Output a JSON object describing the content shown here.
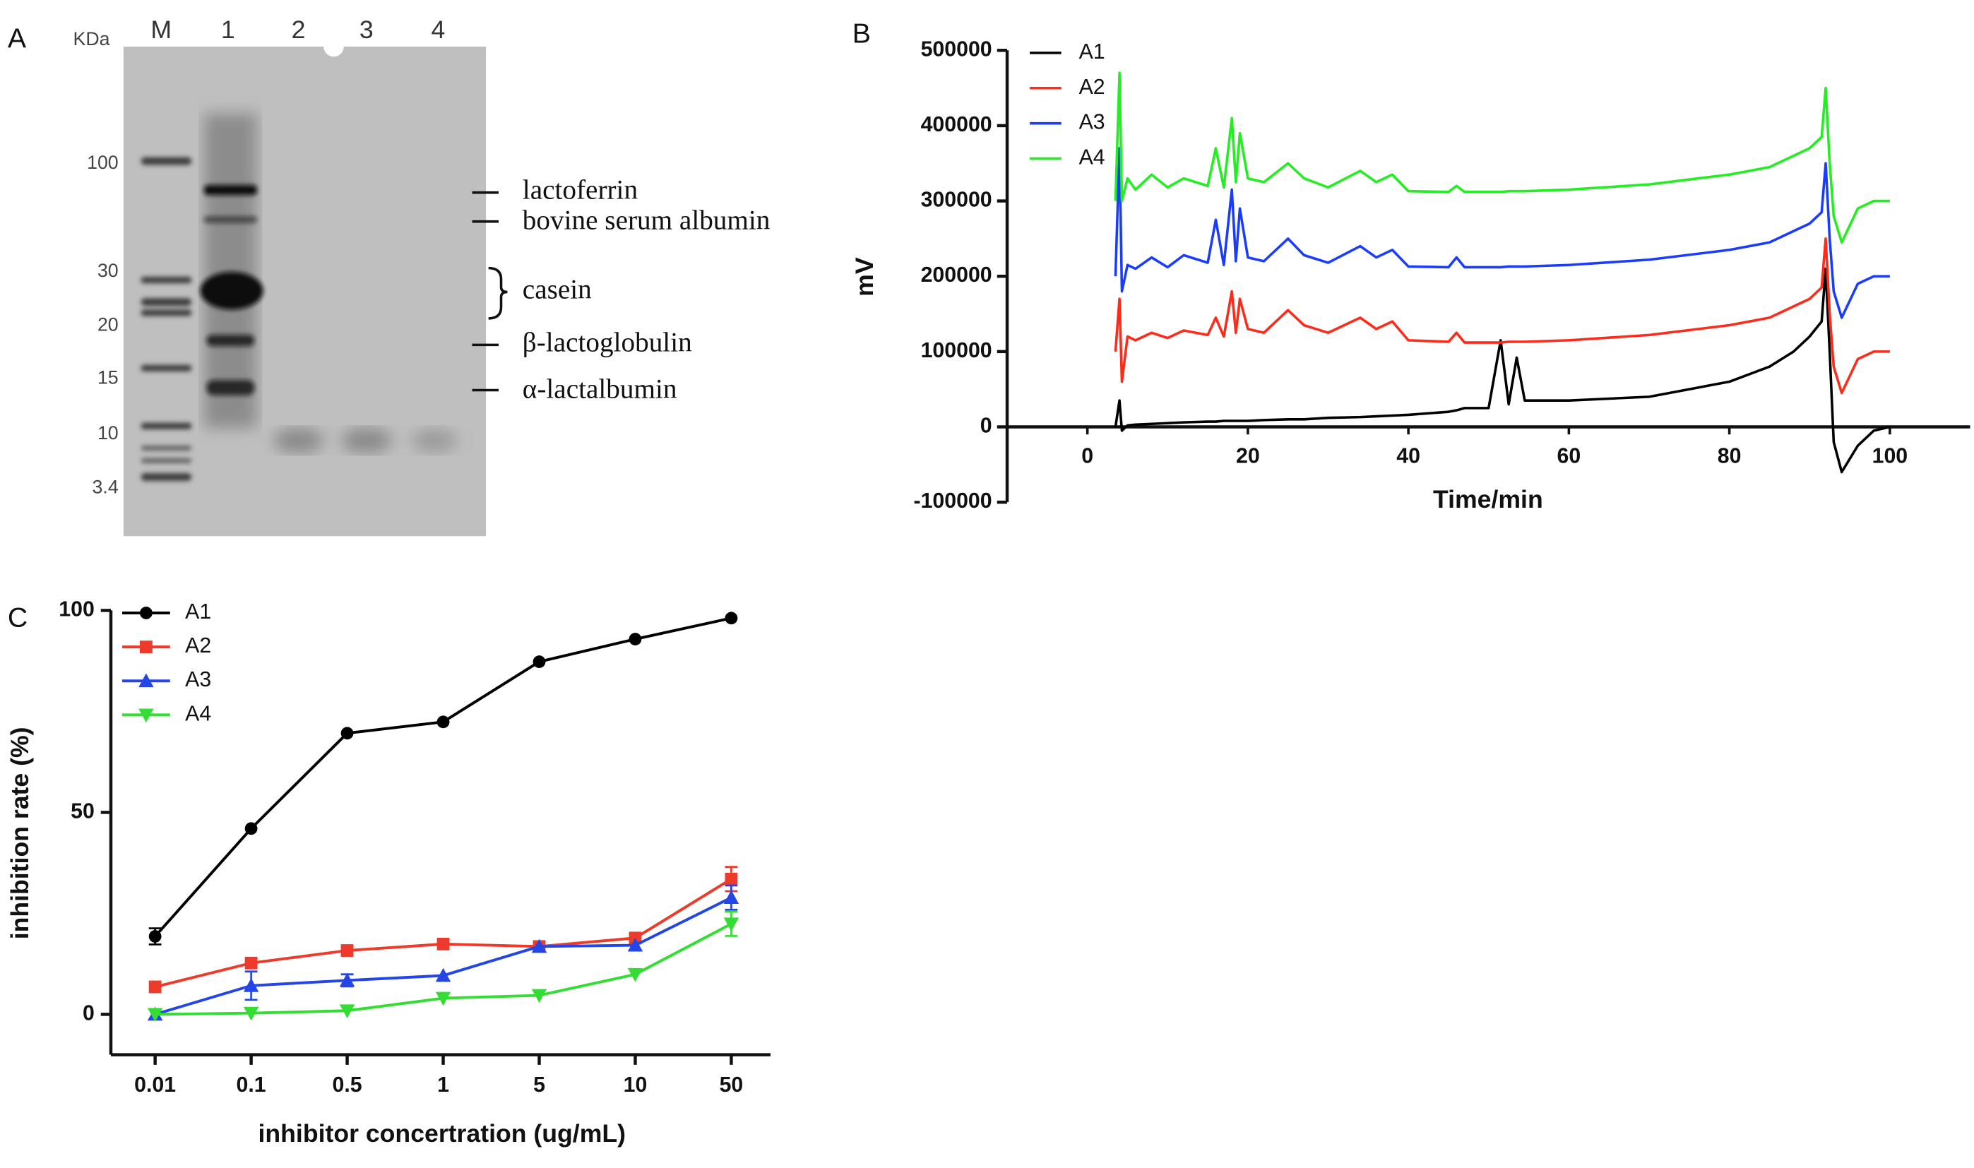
{
  "gel": {
    "label": "A",
    "unit_label": "KDa",
    "lanes": [
      "M",
      "1",
      "2",
      "3",
      "4"
    ],
    "markers": [
      100,
      30,
      20,
      15,
      10,
      3.4
    ],
    "annotations": [
      "lactoferrin",
      "bovine serum albumin",
      "casein",
      "β-lactoglobulin",
      "α-lactalbumin"
    ]
  },
  "chart_data": [
    {
      "type": "line",
      "panel_label": "B",
      "ylabel": "mV",
      "xlabel": "Time/min",
      "x": [
        3.5,
        4,
        4.3,
        5,
        6,
        8,
        10,
        12,
        15,
        16,
        17,
        18,
        18.5,
        19,
        20,
        22,
        25,
        27,
        30,
        34,
        36,
        38,
        40,
        45,
        46,
        47,
        50,
        51.5,
        52.5,
        53.5,
        54.5,
        60,
        70,
        80,
        85,
        88,
        90,
        91.5,
        92,
        92.5,
        93,
        94,
        96,
        98,
        100
      ],
      "xlim": [
        -10,
        110
      ],
      "xticks": [
        0,
        20,
        40,
        60,
        80,
        100
      ],
      "ylim": [
        -100000,
        500000
      ],
      "yticks": [
        -100000,
        0,
        100000,
        200000,
        300000,
        400000,
        500000
      ],
      "legend": "upper left",
      "series": [
        {
          "name": "A1",
          "color": "#000000",
          "values": [
            0,
            35000,
            -5000,
            2000,
            3000,
            4000,
            5000,
            6000,
            7000,
            7000,
            8000,
            8000,
            8000,
            8000,
            8000,
            9000,
            10000,
            10000,
            12000,
            13000,
            14000,
            15000,
            16000,
            20000,
            22000,
            25000,
            25000,
            115000,
            30000,
            92000,
            35000,
            35000,
            40000,
            60000,
            80000,
            100000,
            120000,
            140000,
            210000,
            100000,
            -20000,
            -60000,
            -25000,
            -5000,
            0
          ]
        },
        {
          "name": "A2",
          "color": "#ff2a1a",
          "values": [
            100000,
            170000,
            60000,
            120000,
            115000,
            125000,
            118000,
            128000,
            122000,
            145000,
            120000,
            180000,
            125000,
            170000,
            130000,
            125000,
            155000,
            135000,
            125000,
            145000,
            130000,
            140000,
            115000,
            113000,
            125000,
            112000,
            112000,
            112000,
            113000,
            113000,
            113000,
            115000,
            122000,
            135000,
            145000,
            160000,
            170000,
            185000,
            250000,
            150000,
            80000,
            45000,
            90000,
            100000,
            100000
          ]
        },
        {
          "name": "A3",
          "color": "#1a3cff",
          "values": [
            200000,
            370000,
            180000,
            215000,
            210000,
            225000,
            212000,
            228000,
            218000,
            275000,
            215000,
            315000,
            220000,
            290000,
            225000,
            220000,
            250000,
            228000,
            218000,
            240000,
            225000,
            235000,
            213000,
            212000,
            225000,
            212000,
            212000,
            212000,
            213000,
            213000,
            213000,
            215000,
            222000,
            235000,
            245000,
            260000,
            270000,
            285000,
            350000,
            250000,
            180000,
            145000,
            190000,
            200000,
            200000
          ]
        },
        {
          "name": "A4",
          "color": "#22ee22",
          "values": [
            300000,
            470000,
            300000,
            330000,
            315000,
            335000,
            318000,
            330000,
            320000,
            370000,
            318000,
            410000,
            325000,
            390000,
            330000,
            325000,
            350000,
            330000,
            318000,
            340000,
            325000,
            335000,
            313000,
            312000,
            320000,
            312000,
            312000,
            312000,
            313000,
            313000,
            313000,
            315000,
            322000,
            335000,
            345000,
            360000,
            370000,
            385000,
            450000,
            350000,
            280000,
            245000,
            290000,
            300000,
            300000
          ]
        }
      ]
    },
    {
      "type": "line",
      "panel_label": "C",
      "ylabel": "inhibition rate (%)",
      "xlabel": "inhibitor concertration (ug/mL)",
      "categories": [
        "0.01",
        "0.1",
        "0.5",
        "1",
        "5",
        "10",
        "50"
      ],
      "ylim": [
        -10,
        100
      ],
      "yticks": [
        0,
        50,
        100
      ],
      "legend": "upper left",
      "series": [
        {
          "name": "A1",
          "color": "#000000",
          "marker": "circle",
          "values": [
            19.3,
            46,
            69.6,
            72.4,
            87.3,
            92.9,
            98.1
          ],
          "errors": [
            2,
            0,
            0,
            0,
            0,
            0,
            0
          ]
        },
        {
          "name": "A2",
          "color": "#ee3a2a",
          "marker": "square",
          "values": [
            6.8,
            12.7,
            15.8,
            17.4,
            16.8,
            18.9,
            33.5
          ],
          "errors": [
            0,
            0,
            0,
            0,
            0,
            0,
            3
          ]
        },
        {
          "name": "A3",
          "color": "#2546e6",
          "marker": "triangle-up",
          "values": [
            0,
            7.1,
            8.4,
            9.6,
            16.8,
            17.1,
            28.9
          ],
          "errors": [
            0,
            3.5,
            1.5,
            0,
            0,
            0,
            3
          ]
        },
        {
          "name": "A4",
          "color": "#33dd33",
          "marker": "triangle-down",
          "values": [
            0,
            0.3,
            0.9,
            4.0,
            4.7,
            9.9,
            22.4
          ],
          "errors": [
            0,
            0,
            0,
            0,
            0,
            0,
            3
          ]
        }
      ]
    }
  ]
}
